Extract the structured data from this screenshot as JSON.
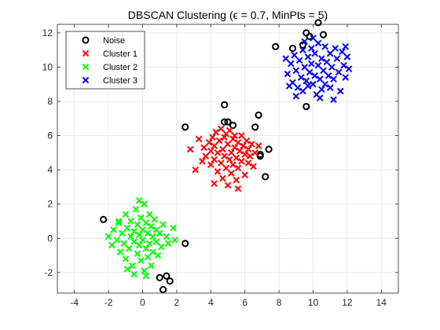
{
  "chart_data": {
    "type": "scatter",
    "title": "DBSCAN Clustering (ϵ = 0.7, MinPts = 5)",
    "xlabel": "",
    "ylabel": "",
    "xlim": [
      -5,
      15
    ],
    "ylim": [
      -3.2,
      12.5
    ],
    "xticks": [
      -4,
      -2,
      0,
      2,
      4,
      6,
      8,
      10,
      12,
      14
    ],
    "yticks": [
      -2,
      0,
      2,
      4,
      6,
      8,
      10,
      12
    ],
    "grid": true,
    "legend_position": "top-left",
    "series": [
      {
        "name": "Noise",
        "marker": "circle",
        "color": "#000000",
        "points": [
          [
            -2.3,
            1.1
          ],
          [
            1.0,
            -2.3
          ],
          [
            1.2,
            -3.0
          ],
          [
            1.4,
            -2.2
          ],
          [
            1.6,
            -2.5
          ],
          [
            2.5,
            -0.3
          ],
          [
            2.5,
            6.5
          ],
          [
            4.8,
            7.8
          ],
          [
            4.8,
            6.8
          ],
          [
            5.0,
            6.8
          ],
          [
            5.3,
            6.6
          ],
          [
            6.6,
            6.5
          ],
          [
            6.8,
            7.2
          ],
          [
            6.9,
            4.9
          ],
          [
            6.9,
            4.8
          ],
          [
            7.2,
            3.6
          ],
          [
            7.4,
            5.2
          ],
          [
            7.8,
            11.2
          ],
          [
            8.8,
            11.1
          ],
          [
            9.4,
            11.3
          ],
          [
            9.6,
            12.0
          ],
          [
            9.8,
            11.8
          ],
          [
            10.3,
            12.6
          ],
          [
            10.6,
            11.9
          ],
          [
            9.6,
            7.7
          ]
        ]
      },
      {
        "name": "Cluster 1",
        "marker": "x",
        "color": "#ff0000",
        "points": [
          [
            3.6,
            5.3
          ],
          [
            3.7,
            4.8
          ],
          [
            3.9,
            5.6
          ],
          [
            4.0,
            5.1
          ],
          [
            4.0,
            4.3
          ],
          [
            4.1,
            5.9
          ],
          [
            4.2,
            4.6
          ],
          [
            4.2,
            5.4
          ],
          [
            4.3,
            6.2
          ],
          [
            4.4,
            3.9
          ],
          [
            4.4,
            5.0
          ],
          [
            4.5,
            5.7
          ],
          [
            4.6,
            4.4
          ],
          [
            4.6,
            6.4
          ],
          [
            4.7,
            5.2
          ],
          [
            4.7,
            3.5
          ],
          [
            4.8,
            4.8
          ],
          [
            4.8,
            5.9
          ],
          [
            4.9,
            6.1
          ],
          [
            4.9,
            4.1
          ],
          [
            5.0,
            5.5
          ],
          [
            5.0,
            3.1
          ],
          [
            5.1,
            4.6
          ],
          [
            5.1,
            6.3
          ],
          [
            5.2,
            5.0
          ],
          [
            5.2,
            3.8
          ],
          [
            5.3,
            5.8
          ],
          [
            5.3,
            4.3
          ],
          [
            5.4,
            5.3
          ],
          [
            5.4,
            6.0
          ],
          [
            5.5,
            4.7
          ],
          [
            5.5,
            3.4
          ],
          [
            5.6,
            5.6
          ],
          [
            5.6,
            4.1
          ],
          [
            5.7,
            5.1
          ],
          [
            5.8,
            6.0
          ],
          [
            5.8,
            4.5
          ],
          [
            5.9,
            5.4
          ],
          [
            6.0,
            4.9
          ],
          [
            6.0,
            3.7
          ],
          [
            6.1,
            5.7
          ],
          [
            6.2,
            4.4
          ],
          [
            6.2,
            5.2
          ],
          [
            6.3,
            4.8
          ],
          [
            6.4,
            5.5
          ],
          [
            6.5,
            4.2
          ],
          [
            6.6,
            5.0
          ],
          [
            3.5,
            4.5
          ],
          [
            4.2,
            3.2
          ],
          [
            5.6,
            2.9
          ],
          [
            6.8,
            5.4
          ],
          [
            3.3,
            5.8
          ],
          [
            2.8,
            5.2
          ],
          [
            3.1,
            4.0
          ]
        ]
      },
      {
        "name": "Cluster 2",
        "marker": "x",
        "color": "#00ff00",
        "points": [
          [
            -2.0,
            0.1
          ],
          [
            -1.8,
            -0.4
          ],
          [
            -1.7,
            0.5
          ],
          [
            -1.5,
            -0.1
          ],
          [
            -1.4,
            0.9
          ],
          [
            -1.3,
            -0.8
          ],
          [
            -1.2,
            0.3
          ],
          [
            -1.1,
            -0.3
          ],
          [
            -1.0,
            1.4
          ],
          [
            -1.0,
            -1.2
          ],
          [
            -0.9,
            0.6
          ],
          [
            -0.8,
            -0.6
          ],
          [
            -0.7,
            0.1
          ],
          [
            -0.7,
            1.0
          ],
          [
            -0.6,
            -1.6
          ],
          [
            -0.5,
            0.4
          ],
          [
            -0.5,
            -0.2
          ],
          [
            -0.4,
            1.7
          ],
          [
            -0.3,
            -0.9
          ],
          [
            -0.3,
            0.8
          ],
          [
            -0.2,
            0.2
          ],
          [
            -0.2,
            -0.4
          ],
          [
            -0.1,
            1.2
          ],
          [
            -0.1,
            -1.3
          ],
          [
            0.0,
            0.5
          ],
          [
            0.0,
            -0.1
          ],
          [
            0.1,
            2.0
          ],
          [
            0.1,
            -1.9
          ],
          [
            0.2,
            0.9
          ],
          [
            0.2,
            -0.6
          ],
          [
            0.3,
            0.3
          ],
          [
            0.3,
            -1.1
          ],
          [
            0.4,
            1.4
          ],
          [
            0.4,
            -0.3
          ],
          [
            0.5,
            0.7
          ],
          [
            0.5,
            -1.6
          ],
          [
            0.6,
            0.1
          ],
          [
            0.6,
            -0.8
          ],
          [
            0.7,
            1.1
          ],
          [
            0.8,
            -0.2
          ],
          [
            0.8,
            0.5
          ],
          [
            0.9,
            -1.0
          ],
          [
            1.0,
            0.3
          ],
          [
            1.1,
            -0.5
          ],
          [
            1.2,
            0.8
          ],
          [
            1.4,
            0.1
          ],
          [
            1.5,
            -0.3
          ],
          [
            1.8,
            0.6
          ],
          [
            -1.4,
            1.0
          ],
          [
            -0.5,
            -2.1
          ],
          [
            0.2,
            -2.2
          ],
          [
            -0.2,
            2.2
          ],
          [
            1.9,
            -0.1
          ],
          [
            -0.9,
            -1.8
          ]
        ]
      },
      {
        "name": "Cluster 3",
        "marker": "x",
        "color": "#0000ff",
        "points": [
          [
            8.5,
            9.6
          ],
          [
            8.7,
            10.2
          ],
          [
            8.8,
            9.1
          ],
          [
            8.9,
            10.7
          ],
          [
            9.0,
            9.8
          ],
          [
            9.1,
            8.8
          ],
          [
            9.2,
            10.4
          ],
          [
            9.3,
            9.4
          ],
          [
            9.4,
            11.0
          ],
          [
            9.4,
            8.6
          ],
          [
            9.5,
            10.0
          ],
          [
            9.6,
            9.2
          ],
          [
            9.7,
            10.6
          ],
          [
            9.7,
            8.9
          ],
          [
            9.8,
            9.7
          ],
          [
            9.9,
            11.1
          ],
          [
            9.9,
            10.2
          ],
          [
            10.0,
            9.0
          ],
          [
            10.1,
            10.8
          ],
          [
            10.1,
            9.5
          ],
          [
            10.2,
            8.4
          ],
          [
            10.3,
            10.1
          ],
          [
            10.3,
            11.4
          ],
          [
            10.4,
            9.3
          ],
          [
            10.5,
            10.5
          ],
          [
            10.5,
            8.7
          ],
          [
            10.6,
            9.8
          ],
          [
            10.7,
            11.2
          ],
          [
            10.7,
            9.0
          ],
          [
            10.8,
            10.3
          ],
          [
            10.9,
            9.5
          ],
          [
            11.0,
            10.8
          ],
          [
            11.0,
            8.8
          ],
          [
            11.1,
            10.0
          ],
          [
            11.2,
            9.3
          ],
          [
            11.3,
            11.1
          ],
          [
            11.4,
            10.5
          ],
          [
            11.5,
            9.7
          ],
          [
            11.6,
            8.6
          ],
          [
            11.7,
            10.9
          ],
          [
            11.8,
            10.1
          ],
          [
            11.9,
            9.4
          ],
          [
            12.0,
            10.6
          ],
          [
            12.1,
            9.9
          ],
          [
            9.0,
            8.3
          ],
          [
            9.5,
            11.5
          ],
          [
            10.4,
            8.2
          ],
          [
            11.2,
            8.1
          ],
          [
            8.6,
            8.9
          ],
          [
            11.9,
            11.2
          ],
          [
            10.0,
            11.7
          ],
          [
            8.4,
            10.5
          ]
        ]
      }
    ]
  }
}
